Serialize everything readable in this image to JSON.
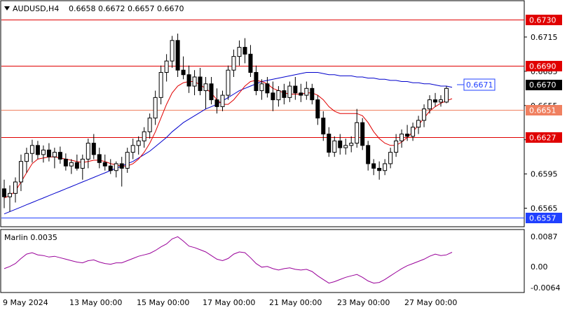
{
  "header": {
    "symbol": "AUDUSD,H4",
    "ohlc": "0.6658 0.6672 0.6657 0.6670"
  },
  "indicator": {
    "name_value": "Marlin 0.0035",
    "axis_labels": [
      "0.0087",
      "0.00",
      "-0.0064"
    ]
  },
  "price_axis": {
    "ticks": [
      "0.6715",
      "0.6685",
      "0.6655",
      "0.6625",
      "0.6595",
      "0.6565"
    ]
  },
  "levels": [
    {
      "label": "0.6730",
      "value": 0.673,
      "color": "#e00000"
    },
    {
      "label": "0.6690",
      "value": 0.669,
      "color": "#e00000"
    },
    {
      "label": "0.6651",
      "value": 0.6651,
      "color": "#f08060"
    },
    {
      "label": "0.6627",
      "value": 0.6627,
      "color": "#e00000"
    },
    {
      "label": "0.6557",
      "value": 0.6557,
      "color": "#2040ff"
    }
  ],
  "current_price": {
    "label": "0.6670",
    "value": 0.667
  },
  "ma_price": {
    "label": "0.6671",
    "value": 0.6671,
    "color": "#2040ff"
  },
  "date_axis": [
    "9 May 2024",
    "13 May 00:00",
    "15 May 00:00",
    "17 May 00:00",
    "21 May 00:00",
    "23 May 00:00",
    "27 May 00:00"
  ],
  "colors": {
    "bull": "#ffffff",
    "bear": "#000000",
    "short_ma": "#e00000",
    "long_ma": "#0000cc",
    "oscillator": "#990099"
  },
  "chart_data": {
    "type": "candlestick",
    "price_range": [
      0.655,
      0.6745
    ],
    "indicator_range": [
      -0.0072,
      0.0092
    ],
    "candles": [
      [
        0.6582,
        0.659,
        0.6565,
        0.6575
      ],
      [
        0.6575,
        0.6585,
        0.6562,
        0.6578
      ],
      [
        0.6578,
        0.6592,
        0.657,
        0.6588
      ],
      [
        0.6588,
        0.6612,
        0.658,
        0.6606
      ],
      [
        0.6606,
        0.6618,
        0.6596,
        0.6613
      ],
      [
        0.6613,
        0.6625,
        0.6605,
        0.662
      ],
      [
        0.662,
        0.6624,
        0.6608,
        0.6612
      ],
      [
        0.6612,
        0.662,
        0.6605,
        0.6616
      ],
      [
        0.6616,
        0.6622,
        0.6606,
        0.661
      ],
      [
        0.661,
        0.6618,
        0.66,
        0.6614
      ],
      [
        0.6614,
        0.6619,
        0.6604,
        0.6608
      ],
      [
        0.6608,
        0.6613,
        0.6598,
        0.6602
      ],
      [
        0.6602,
        0.6608,
        0.6595,
        0.6605
      ],
      [
        0.6605,
        0.6612,
        0.6598,
        0.66
      ],
      [
        0.66,
        0.6612,
        0.659,
        0.6608
      ],
      [
        0.6608,
        0.6626,
        0.66,
        0.6622
      ],
      [
        0.6622,
        0.663,
        0.6608,
        0.6612
      ],
      [
        0.6612,
        0.6618,
        0.66,
        0.6605
      ],
      [
        0.6605,
        0.6612,
        0.6598,
        0.6602
      ],
      [
        0.6602,
        0.6608,
        0.6595,
        0.6598
      ],
      [
        0.6598,
        0.6606,
        0.6592,
        0.6604
      ],
      [
        0.6604,
        0.661,
        0.6584,
        0.66
      ],
      [
        0.66,
        0.6618,
        0.6596,
        0.6614
      ],
      [
        0.6614,
        0.6626,
        0.6608,
        0.662
      ],
      [
        0.662,
        0.6628,
        0.6612,
        0.6624
      ],
      [
        0.6624,
        0.6636,
        0.6618,
        0.6632
      ],
      [
        0.6632,
        0.6648,
        0.6626,
        0.6644
      ],
      [
        0.6644,
        0.6668,
        0.6638,
        0.6662
      ],
      [
        0.6662,
        0.669,
        0.6656,
        0.6684
      ],
      [
        0.6684,
        0.67,
        0.6676,
        0.6694
      ],
      [
        0.6694,
        0.6716,
        0.6688,
        0.6712
      ],
      [
        0.6712,
        0.6718,
        0.668,
        0.6686
      ],
      [
        0.6686,
        0.6698,
        0.6678,
        0.6682
      ],
      [
        0.6682,
        0.669,
        0.6666,
        0.6672
      ],
      [
        0.6672,
        0.6686,
        0.6664,
        0.668
      ],
      [
        0.668,
        0.6688,
        0.6664,
        0.6668
      ],
      [
        0.6668,
        0.668,
        0.6652,
        0.6674
      ],
      [
        0.6674,
        0.668,
        0.6656,
        0.666
      ],
      [
        0.666,
        0.667,
        0.6648,
        0.6654
      ],
      [
        0.6654,
        0.6668,
        0.665,
        0.6664
      ],
      [
        0.6664,
        0.669,
        0.666,
        0.6686
      ],
      [
        0.6686,
        0.6704,
        0.668,
        0.6698
      ],
      [
        0.6698,
        0.6712,
        0.669,
        0.6706
      ],
      [
        0.6706,
        0.6714,
        0.6692,
        0.67
      ],
      [
        0.67,
        0.6708,
        0.668,
        0.6684
      ],
      [
        0.6684,
        0.669,
        0.6664,
        0.6668
      ],
      [
        0.6668,
        0.6678,
        0.666,
        0.6674
      ],
      [
        0.6674,
        0.668,
        0.6662,
        0.6666
      ],
      [
        0.6666,
        0.6676,
        0.665,
        0.666
      ],
      [
        0.666,
        0.6672,
        0.6654,
        0.6668
      ],
      [
        0.6668,
        0.6674,
        0.6656,
        0.6662
      ],
      [
        0.6662,
        0.6676,
        0.6658,
        0.6672
      ],
      [
        0.6672,
        0.668,
        0.666,
        0.6666
      ],
      [
        0.6666,
        0.6674,
        0.6658,
        0.6664
      ],
      [
        0.6664,
        0.6676,
        0.666,
        0.667
      ],
      [
        0.667,
        0.6674,
        0.6656,
        0.666
      ],
      [
        0.666,
        0.6664,
        0.6638,
        0.6644
      ],
      [
        0.6644,
        0.665,
        0.6624,
        0.663
      ],
      [
        0.663,
        0.6636,
        0.661,
        0.6614
      ],
      [
        0.6614,
        0.6628,
        0.661,
        0.6624
      ],
      [
        0.6624,
        0.663,
        0.6612,
        0.6618
      ],
      [
        0.6618,
        0.6626,
        0.6612,
        0.662
      ],
      [
        0.662,
        0.6628,
        0.6614,
        0.6622
      ],
      [
        0.6622,
        0.6652,
        0.6618,
        0.664
      ],
      [
        0.664,
        0.6644,
        0.6616,
        0.662
      ],
      [
        0.662,
        0.6624,
        0.6598,
        0.6604
      ],
      [
        0.6604,
        0.6608,
        0.6594,
        0.66
      ],
      [
        0.66,
        0.6606,
        0.659,
        0.6598
      ],
      [
        0.6598,
        0.6608,
        0.6594,
        0.6604
      ],
      [
        0.6604,
        0.6618,
        0.66,
        0.6614
      ],
      [
        0.6614,
        0.663,
        0.661,
        0.6624
      ],
      [
        0.6624,
        0.6634,
        0.6618,
        0.663
      ],
      [
        0.663,
        0.6638,
        0.6624,
        0.6628
      ],
      [
        0.6628,
        0.664,
        0.6624,
        0.6636
      ],
      [
        0.6636,
        0.6646,
        0.663,
        0.6642
      ],
      [
        0.6642,
        0.6656,
        0.6636,
        0.6652
      ],
      [
        0.6652,
        0.6664,
        0.6648,
        0.666
      ],
      [
        0.666,
        0.6666,
        0.6654,
        0.6658
      ],
      [
        0.6658,
        0.6664,
        0.6654,
        0.666
      ],
      [
        0.6658,
        0.6672,
        0.6657,
        0.667
      ]
    ],
    "short_ma": [
      0.6574,
      0.6576,
      0.658,
      0.6588,
      0.6596,
      0.6604,
      0.6608,
      0.6609,
      0.661,
      0.661,
      0.6609,
      0.6608,
      0.6607,
      0.6606,
      0.6605,
      0.6606,
      0.6607,
      0.6607,
      0.6606,
      0.6604,
      0.6603,
      0.6602,
      0.6602,
      0.6604,
      0.6608,
      0.6614,
      0.6622,
      0.6632,
      0.6644,
      0.6656,
      0.6666,
      0.6672,
      0.6675,
      0.6676,
      0.6676,
      0.6673,
      0.667,
      0.6666,
      0.666,
      0.6656,
      0.6656,
      0.666,
      0.6666,
      0.6672,
      0.6676,
      0.6677,
      0.6676,
      0.6674,
      0.667,
      0.6668,
      0.6666,
      0.6665,
      0.6665,
      0.6665,
      0.6666,
      0.6666,
      0.6664,
      0.666,
      0.6654,
      0.665,
      0.6648,
      0.6648,
      0.6648,
      0.6648,
      0.6646,
      0.664,
      0.6632,
      0.6626,
      0.6622,
      0.662,
      0.662,
      0.6623,
      0.6627,
      0.6632,
      0.6638,
      0.6644,
      0.665,
      0.6654,
      0.6657,
      0.6659,
      0.6661
    ],
    "long_ma": [
      0.656,
      0.6562,
      0.6564,
      0.6566,
      0.6568,
      0.657,
      0.6572,
      0.6574,
      0.6576,
      0.6578,
      0.658,
      0.6582,
      0.6584,
      0.6586,
      0.6588,
      0.659,
      0.6592,
      0.6594,
      0.6596,
      0.6598,
      0.66,
      0.6602,
      0.6604,
      0.6606,
      0.6609,
      0.6612,
      0.6615,
      0.6619,
      0.6623,
      0.6627,
      0.6632,
      0.6636,
      0.664,
      0.6643,
      0.6646,
      0.6649,
      0.6652,
      0.6654,
      0.6656,
      0.6659,
      0.6662,
      0.6665,
      0.6668,
      0.667,
      0.6672,
      0.6674,
      0.6676,
      0.6677,
      0.6678,
      0.6679,
      0.668,
      0.6681,
      0.6682,
      0.6683,
      0.6684,
      0.6684,
      0.6684,
      0.6683,
      0.6682,
      0.6682,
      0.6681,
      0.6681,
      0.6681,
      0.668,
      0.668,
      0.6679,
      0.6679,
      0.6678,
      0.6678,
      0.6677,
      0.6677,
      0.6676,
      0.6676,
      0.6675,
      0.6675,
      0.6674,
      0.6674,
      0.6673,
      0.6672,
      0.6672,
      0.6671
    ],
    "oscillator": [
      -0.001,
      -0.0004,
      0.0004,
      0.0018,
      0.003,
      0.0034,
      0.0028,
      0.0026,
      0.0022,
      0.0024,
      0.002,
      0.0016,
      0.0012,
      0.0008,
      0.0006,
      0.0012,
      0.0014,
      0.0008,
      0.0004,
      0.0002,
      0.0006,
      0.0006,
      0.0012,
      0.0018,
      0.0024,
      0.0028,
      0.0032,
      0.004,
      0.005,
      0.0058,
      0.0072,
      0.0078,
      0.0066,
      0.0052,
      0.0048,
      0.0042,
      0.0036,
      0.0026,
      0.0016,
      0.0012,
      0.0018,
      0.003,
      0.0036,
      0.0034,
      0.002,
      0.0004,
      -0.0006,
      -0.0004,
      -0.001,
      -0.0014,
      -0.001,
      -0.0008,
      -0.0012,
      -0.0014,
      -0.0012,
      -0.0018,
      -0.003,
      -0.004,
      -0.005,
      -0.0046,
      -0.004,
      -0.0034,
      -0.003,
      -0.0026,
      -0.0034,
      -0.0044,
      -0.005,
      -0.0048,
      -0.004,
      -0.003,
      -0.002,
      -0.001,
      -0.0002,
      0.0004,
      0.001,
      0.0016,
      0.0024,
      0.003,
      0.0026,
      0.0028,
      0.0035
    ]
  }
}
